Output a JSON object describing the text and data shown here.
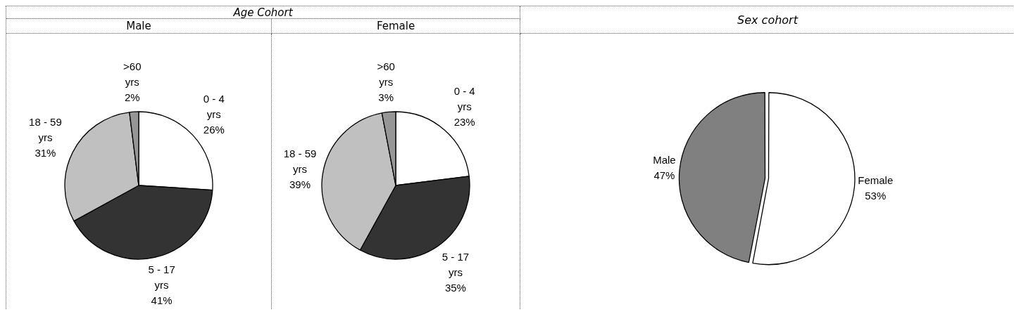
{
  "chart_data": [
    {
      "type": "pie",
      "title": "Male",
      "annotations": [
        "Age Cohort"
      ],
      "categories": [
        "0 - 4 yrs",
        "5 - 17 yrs",
        "18 - 59 yrs",
        ">60 yrs"
      ],
      "values": [
        26,
        41,
        31,
        2
      ],
      "value_labels": [
        "26%",
        "41%",
        "31%",
        "2%"
      ],
      "colors": [
        "#ffffff",
        "#333333",
        "#c0c0c0",
        "#969696"
      ]
    },
    {
      "type": "pie",
      "title": "Female",
      "categories": [
        "0 - 4 yrs",
        "5 - 17 yrs",
        "18 - 59 yrs",
        ">60 yrs"
      ],
      "values": [
        23,
        35,
        39,
        3
      ],
      "value_labels": [
        "23%",
        "35%",
        "39%",
        "3%"
      ],
      "colors": [
        "#ffffff",
        "#333333",
        "#c0c0c0",
        "#969696"
      ]
    },
    {
      "type": "pie",
      "title": "Sex cohort",
      "categories": [
        "Female",
        "Male"
      ],
      "values": [
        53,
        47
      ],
      "value_labels": [
        "53%",
        "47%"
      ],
      "colors": [
        "#ffffff",
        "#808080"
      ]
    }
  ]
}
